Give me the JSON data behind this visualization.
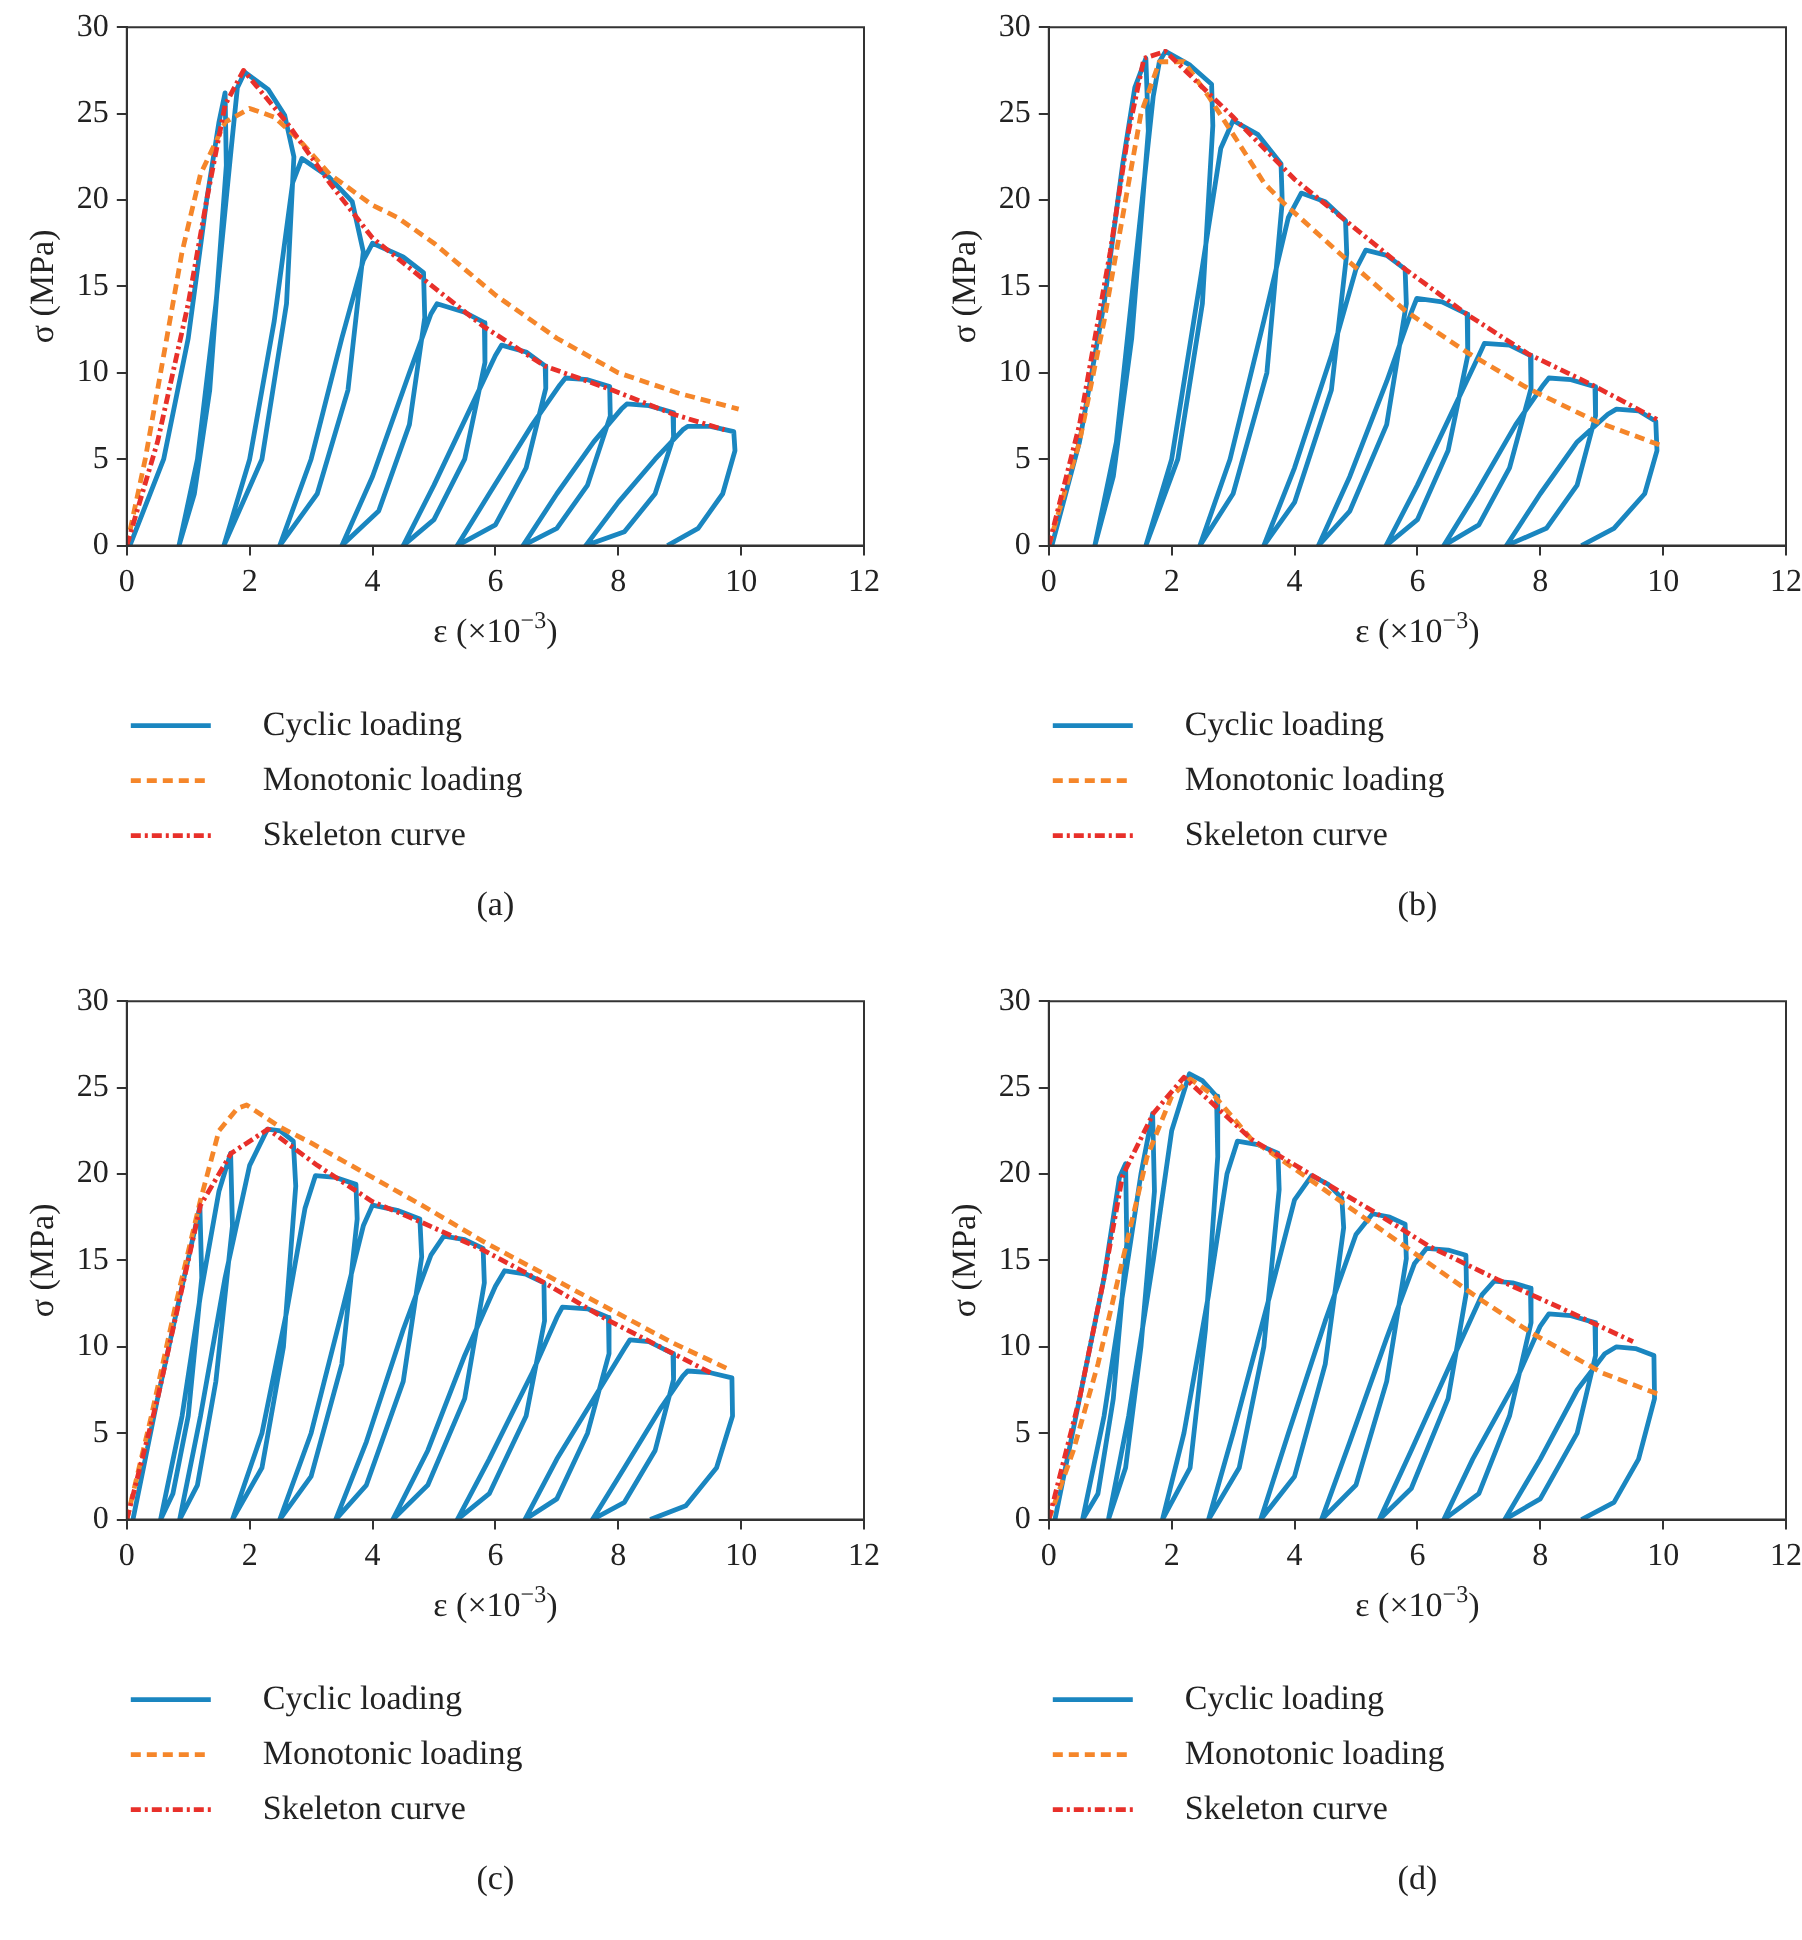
{
  "chart_data": [
    {
      "type": "line",
      "xlabel": "ε (×10$^{−3}$)",
      "ylabel": "σ (MPa)",
      "xlim": [
        0,
        12
      ],
      "xticks": [
        0,
        2,
        4,
        6,
        8,
        10,
        12
      ],
      "ylim": [
        0,
        30
      ],
      "yticks": [
        0,
        5,
        10,
        15,
        20,
        25,
        30
      ],
      "grid": false,
      "legend": "bottom",
      "marker": "none",
      "annotations": [
        "(a)"
      ],
      "series": [
        {
          "name": "Cyclic loading",
          "color": "#1a86c0",
          "line_style": "solid",
          "x": [
            0.05,
            0.6,
            1.0,
            1.3,
            1.5,
            1.6,
            1.62,
            1.35,
            1.1,
            0.85,
            1.15,
            1.45,
            1.7,
            1.8,
            1.92,
            2.3,
            2.57,
            2.72,
            2.6,
            2.2,
            1.58,
            2.0,
            2.4,
            2.7,
            2.85,
            3.3,
            3.67,
            3.85,
            3.6,
            3.1,
            2.49,
            3.0,
            3.5,
            3.85,
            4.0,
            4.5,
            4.83,
            4.85,
            4.6,
            4.1,
            3.5,
            4.0,
            4.6,
            4.95,
            5.05,
            5.5,
            5.82,
            5.83,
            5.5,
            5.0,
            4.5,
            5.0,
            5.6,
            6.0,
            6.1,
            6.5,
            6.81,
            6.82,
            6.5,
            6.0,
            5.38,
            5.9,
            6.6,
            7.05,
            7.14,
            7.5,
            7.86,
            7.87,
            7.5,
            7.0,
            6.45,
            7.0,
            7.6,
            8.05,
            8.14,
            8.5,
            8.89,
            8.9,
            8.6,
            8.1,
            7.47,
            8.0,
            8.6,
            9.05,
            9.13,
            9.5,
            9.88,
            9.9,
            9.7,
            9.3,
            8.8
          ],
          "values": [
            0,
            5,
            12,
            20,
            24.5,
            26.2,
            22,
            9,
            3,
            0,
            5,
            14,
            23,
            26.5,
            27.4,
            26.4,
            24.9,
            22.5,
            14,
            5,
            0,
            5,
            13,
            21,
            22.4,
            21.3,
            19.9,
            17,
            9,
            3,
            0,
            5,
            12,
            16.5,
            17.5,
            16.7,
            15.8,
            13.2,
            7,
            2,
            0,
            4,
            10,
            13.4,
            14.0,
            13.5,
            12.9,
            10.6,
            5,
            1.5,
            0,
            3.5,
            8,
            11,
            11.6,
            11.2,
            10.4,
            9.1,
            4.5,
            1.2,
            0,
            3,
            7,
            9.3,
            9.7,
            9.6,
            9.2,
            7.5,
            3.5,
            1,
            0,
            3,
            6,
            7.9,
            8.2,
            8.1,
            7.7,
            6.3,
            3,
            0.8,
            0,
            2.5,
            5,
            6.7,
            6.9,
            6.9,
            6.6,
            5.5,
            3,
            1,
            0
          ]
        },
        {
          "name": "Monotonic loading",
          "color": "#f5862a",
          "line_style": "dashed",
          "x": [
            0,
            0.3,
            0.6,
            0.9,
            1.2,
            1.6,
            2.0,
            2.4,
            2.8,
            3.3,
            4.0,
            4.4,
            5.0,
            6.0,
            7.0,
            8.0,
            9.0,
            9.96
          ],
          "values": [
            0,
            5,
            11,
            17,
            21.5,
            24.5,
            25.3,
            24.8,
            23.5,
            21.5,
            19.7,
            19,
            17.5,
            14.5,
            12,
            10,
            8.8,
            7.9
          ]
        },
        {
          "name": "Skeleton curve",
          "color": "#e8302a",
          "line_style": "dashdot",
          "x": [
            0,
            0.5,
            1.0,
            1.3,
            1.6,
            1.9,
            2.6,
            3.3,
            4.0,
            4.8,
            5.8,
            6.8,
            7.9,
            8.9,
            9.73
          ],
          "values": [
            0,
            6,
            14,
            20,
            25.5,
            27.5,
            24.5,
            21,
            17.8,
            15.5,
            12.7,
            10.4,
            9.0,
            7.6,
            6.7
          ]
        }
      ]
    },
    {
      "type": "line",
      "xlabel": "ε (×10$^{−3}$)",
      "ylabel": "σ (MPa)",
      "xlim": [
        0,
        12
      ],
      "xticks": [
        0,
        2,
        4,
        6,
        8,
        10,
        12
      ],
      "ylim": [
        0,
        30
      ],
      "yticks": [
        0,
        5,
        10,
        15,
        20,
        25,
        30
      ],
      "grid": false,
      "legend": "bottom",
      "marker": "none",
      "annotations": [
        "(b)"
      ],
      "series": [
        {
          "name": "Cyclic loading",
          "color": "#1a86c0",
          "line_style": "solid",
          "x": [
            0.05,
            0.5,
            0.9,
            1.2,
            1.4,
            1.58,
            1.62,
            1.35,
            1.05,
            0.75,
            1.1,
            1.4,
            1.7,
            1.8,
            1.9,
            2.3,
            2.65,
            2.67,
            2.5,
            2.1,
            1.58,
            2.0,
            2.45,
            2.8,
            3.0,
            3.4,
            3.78,
            3.8,
            3.55,
            3.0,
            2.46,
            2.95,
            3.5,
            3.9,
            4.11,
            4.5,
            4.83,
            4.85,
            4.6,
            4.0,
            3.5,
            4.0,
            4.6,
            5.0,
            5.16,
            5.5,
            5.8,
            5.82,
            5.5,
            4.9,
            4.39,
            4.9,
            5.5,
            5.9,
            5.99,
            6.4,
            6.81,
            6.82,
            6.5,
            6.0,
            5.49,
            6.0,
            6.6,
            7.0,
            7.09,
            7.5,
            7.84,
            7.85,
            7.5,
            7.0,
            6.43,
            6.95,
            7.6,
            8.05,
            8.14,
            8.5,
            8.89,
            8.9,
            8.6,
            8.1,
            7.45,
            8.0,
            8.6,
            9.1,
            9.24,
            9.6,
            9.88,
            9.9,
            9.7,
            9.2,
            8.67
          ],
          "values": [
            0,
            6,
            14,
            22,
            26.5,
            28.2,
            24,
            12,
            4,
            0,
            6,
            16,
            26,
            28,
            28.6,
            27.8,
            26.7,
            24.3,
            14,
            5,
            0,
            5,
            15,
            23,
            24.6,
            23.8,
            22.1,
            19.9,
            10,
            3,
            0,
            5,
            13,
            19,
            20.4,
            19.9,
            18.8,
            16.9,
            9,
            2.5,
            0,
            4.5,
            11,
            16,
            17.1,
            16.8,
            16.0,
            14,
            7,
            2,
            0,
            4,
            9.5,
            13.5,
            14.3,
            14.1,
            13.4,
            11,
            5.5,
            1.5,
            0,
            3.5,
            8,
            11,
            11.7,
            11.6,
            11.0,
            9.1,
            4.5,
            1.2,
            0,
            3,
            7,
            9.3,
            9.7,
            9.6,
            9.2,
            7.5,
            3.5,
            1,
            0,
            3,
            6,
            7.6,
            7.9,
            7.8,
            7.2,
            5.5,
            3,
            1,
            0
          ]
        },
        {
          "name": "Monotonic loading",
          "color": "#f5862a",
          "line_style": "dashed",
          "x": [
            0,
            0.5,
            0.9,
            1.2,
            1.5,
            1.8,
            2.2,
            2.6,
            3.0,
            3.5,
            3.8,
            4.8,
            5.8,
            6.8,
            7.8,
            8.9,
            9.96
          ],
          "values": [
            0,
            6,
            13,
            19,
            25,
            28,
            28,
            26,
            23.8,
            21,
            19.9,
            16.7,
            13.6,
            11.2,
            9.1,
            7.2,
            5.8
          ]
        },
        {
          "name": "Skeleton curve",
          "color": "#e8302a",
          "line_style": "dashdot",
          "x": [
            0,
            0.5,
            1.0,
            1.3,
            1.55,
            1.9,
            3.0,
            4.0,
            4.8,
            5.8,
            6.8,
            7.8,
            8.9,
            9.9
          ],
          "values": [
            0,
            7,
            17,
            24,
            28.2,
            28.6,
            24.8,
            21.2,
            18.9,
            16.0,
            13.4,
            11.1,
            9.2,
            7.3
          ]
        }
      ]
    },
    {
      "type": "line",
      "xlabel": "ε (×10$^{−3}$)",
      "ylabel": "σ (MPa)",
      "xlim": [
        0,
        12
      ],
      "xticks": [
        0,
        2,
        4,
        6,
        8,
        10,
        12
      ],
      "ylim": [
        0,
        30
      ],
      "yticks": [
        0,
        5,
        10,
        15,
        20,
        25,
        30
      ],
      "grid": false,
      "legend": "bottom",
      "marker": "none",
      "annotations": [
        "(c)"
      ],
      "series": [
        {
          "name": "Cyclic loading",
          "color": "#1a86c0",
          "line_style": "solid",
          "x": [
            0.1,
            0.5,
            0.9,
            1.19,
            1.22,
            1.0,
            0.75,
            0.55,
            0.9,
            1.2,
            1.5,
            1.69,
            1.72,
            1.45,
            1.15,
            0.86,
            1.2,
            1.6,
            2.0,
            2.29,
            2.5,
            2.71,
            2.75,
            2.55,
            2.2,
            1.72,
            2.2,
            2.6,
            2.9,
            3.07,
            3.4,
            3.73,
            3.75,
            3.5,
            3.0,
            2.49,
            3.0,
            3.5,
            3.85,
            4.0,
            4.4,
            4.77,
            4.8,
            4.5,
            3.9,
            3.4,
            3.9,
            4.5,
            4.95,
            5.16,
            5.5,
            5.8,
            5.82,
            5.5,
            4.9,
            4.33,
            4.9,
            5.5,
            6.0,
            6.15,
            6.5,
            6.79,
            6.8,
            6.5,
            5.9,
            5.38,
            5.9,
            6.6,
            7.0,
            7.09,
            7.5,
            7.84,
            7.85,
            7.5,
            7.0,
            6.48,
            7.0,
            7.6,
            8.1,
            8.19,
            8.5,
            8.89,
            8.9,
            8.6,
            8.1,
            7.58,
            8.1,
            8.7,
            9.05,
            9.13,
            9.5,
            9.85,
            9.86,
            9.6,
            9.1,
            8.52
          ],
          "values": [
            0,
            7,
            13.5,
            18.1,
            14,
            6,
            1.5,
            0,
            6,
            13,
            19,
            21.2,
            17,
            8,
            2,
            0,
            6,
            14,
            20.5,
            22.6,
            22.5,
            21.9,
            19.3,
            10,
            3,
            0,
            5,
            12,
            18,
            19.9,
            19.8,
            19.4,
            17.4,
            9,
            2.5,
            0,
            5,
            12,
            17,
            18.2,
            17.9,
            17.4,
            15.2,
            8,
            2,
            0,
            4.5,
            11,
            15.3,
            16.4,
            16.2,
            15.7,
            13.7,
            7,
            2,
            0,
            4,
            9.5,
            13.5,
            14.4,
            14.2,
            13.7,
            11.5,
            6,
            1.5,
            0,
            3.5,
            8.5,
            11.7,
            12.3,
            12.2,
            11.7,
            9.6,
            5,
            1.2,
            0,
            3.5,
            7,
            9.9,
            10.4,
            10.3,
            9.6,
            8.1,
            4,
            1,
            0,
            3,
            6.5,
            8.3,
            8.6,
            8.5,
            8.2,
            6,
            3,
            0.8,
            0
          ]
        },
        {
          "name": "Monotonic loading",
          "color": "#f5862a",
          "line_style": "dashed",
          "x": [
            0,
            0.4,
            0.8,
            1.2,
            1.5,
            1.8,
            1.95,
            2.5,
            3.0,
            4.0,
            4.8,
            5.8,
            6.8,
            7.8,
            8.9,
            9.8
          ],
          "values": [
            0,
            6,
            12.5,
            18.5,
            22.5,
            23.8,
            24.0,
            22.7,
            21.8,
            19.8,
            18.2,
            16.1,
            14.2,
            12.3,
            10.2,
            8.7
          ]
        },
        {
          "name": "Skeleton curve",
          "color": "#e8302a",
          "line_style": "dashdot",
          "x": [
            0,
            0.5,
            1.0,
            1.2,
            1.7,
            2.3,
            3.1,
            4.0,
            4.8,
            5.8,
            6.8,
            7.8,
            8.9,
            9.5
          ],
          "values": [
            0,
            7,
            15,
            18.2,
            21.2,
            22.6,
            20.5,
            18.4,
            17.2,
            15.6,
            13.7,
            11.6,
            9.6,
            8.5
          ]
        }
      ]
    },
    {
      "type": "line",
      "xlabel": "ε (×10$^{−3}$)",
      "ylabel": "σ (MPa)",
      "xlim": [
        0,
        12
      ],
      "xticks": [
        0,
        2,
        4,
        6,
        8,
        10,
        12
      ],
      "ylim": [
        0,
        30
      ],
      "yticks": [
        0,
        5,
        10,
        15,
        20,
        25,
        30
      ],
      "grid": false,
      "legend": "bottom",
      "marker": "none",
      "annotations": [
        "(d)"
      ],
      "series": [
        {
          "name": "Cyclic loading",
          "color": "#1a86c0",
          "line_style": "solid",
          "x": [
            0.1,
            0.5,
            0.9,
            1.15,
            1.25,
            1.27,
            1.05,
            0.8,
            0.55,
            0.9,
            1.2,
            1.5,
            1.69,
            1.72,
            1.5,
            1.25,
            0.97,
            1.3,
            1.7,
            2.0,
            2.29,
            2.5,
            2.73,
            2.75,
            2.55,
            2.3,
            1.85,
            2.2,
            2.6,
            2.9,
            3.07,
            3.4,
            3.73,
            3.75,
            3.5,
            3.1,
            2.6,
            3.0,
            3.6,
            4.0,
            4.28,
            4.55,
            4.77,
            4.8,
            4.5,
            4.0,
            3.45,
            3.9,
            4.5,
            5.0,
            5.27,
            5.55,
            5.8,
            5.82,
            5.5,
            5.0,
            4.44,
            4.9,
            5.5,
            5.95,
            6.15,
            6.5,
            6.79,
            6.8,
            6.5,
            5.9,
            5.38,
            5.9,
            6.6,
            7.05,
            7.25,
            7.55,
            7.84,
            7.85,
            7.5,
            7.0,
            6.43,
            6.9,
            7.6,
            8.0,
            8.14,
            8.5,
            8.89,
            8.9,
            8.6,
            8.0,
            7.42,
            8.0,
            8.6,
            9.05,
            9.24,
            9.55,
            9.85,
            9.86,
            9.6,
            9.2,
            8.67
          ],
          "values": [
            0,
            7,
            14,
            19.8,
            20.6,
            16,
            7,
            1.5,
            0,
            6,
            13,
            20,
            23.5,
            19,
            10,
            3,
            0,
            6,
            15,
            22.5,
            25.8,
            25.4,
            24.5,
            21,
            11,
            3,
            0,
            5,
            13,
            20,
            21.9,
            21.7,
            21.2,
            19.1,
            10,
            3,
            0,
            5,
            13,
            18.5,
            19.9,
            19.4,
            18.6,
            16.9,
            9,
            2.5,
            0,
            5,
            11.5,
            16.5,
            17.7,
            17.5,
            17.1,
            15.1,
            8,
            2,
            0,
            4.5,
            10.5,
            14.8,
            15.7,
            15.6,
            15.3,
            13.2,
            7,
            1.8,
            0,
            4,
            9.5,
            13,
            13.8,
            13.7,
            13.4,
            11.4,
            6,
            1.5,
            0,
            3.5,
            8,
            11.2,
            11.9,
            11.8,
            11.4,
            9.5,
            5,
            1.2,
            0,
            3.5,
            7.5,
            9.6,
            10.0,
            9.9,
            9.5,
            7,
            3.5,
            1,
            0
          ]
        },
        {
          "name": "Monotonic loading",
          "color": "#f5862a",
          "line_style": "dashed",
          "x": [
            0,
            0.4,
            0.8,
            1.2,
            1.6,
            2.0,
            2.3,
            2.7,
            3.3,
            4.0,
            5.0,
            6.0,
            7.0,
            7.86,
            9.0,
            9.96
          ],
          "values": [
            0,
            4,
            9,
            15,
            21,
            24.5,
            25.5,
            24.5,
            22,
            20.3,
            17.8,
            15.3,
            12.8,
            10.8,
            8.5,
            7.2
          ]
        },
        {
          "name": "Skeleton curve",
          "color": "#e8302a",
          "line_style": "dashdot",
          "x": [
            0,
            0.5,
            0.9,
            1.2,
            1.7,
            2.2,
            3.3,
            4.3,
            5.3,
            6.2,
            7.3,
            8.3,
            9.51
          ],
          "values": [
            0,
            7,
            14,
            19.9,
            23.5,
            25.6,
            22,
            19.9,
            17.8,
            15.8,
            13.9,
            12.3,
            10.3
          ]
        }
      ]
    }
  ]
}
